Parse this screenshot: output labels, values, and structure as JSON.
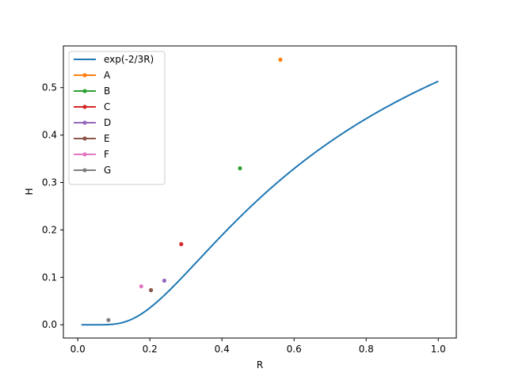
{
  "chart_data": {
    "type": "line",
    "title": "",
    "xlabel": "R",
    "ylabel": "H",
    "xlim": [
      -0.04,
      1.05
    ],
    "ylim": [
      -0.028,
      0.588
    ],
    "xticks": [
      0.0,
      0.2,
      0.4,
      0.6,
      0.8,
      1.0
    ],
    "xtick_labels": [
      "0.0",
      "0.2",
      "0.4",
      "0.6",
      "0.8",
      "1.0"
    ],
    "yticks": [
      0.0,
      0.1,
      0.2,
      0.3,
      0.4,
      0.5
    ],
    "ytick_labels": [
      "0.0",
      "0.1",
      "0.2",
      "0.3",
      "0.4",
      "0.5"
    ],
    "grid": false,
    "legend": "upper left",
    "series": [
      {
        "name": "exp(-2/3R)",
        "kind": "function",
        "x_range": [
          0.01,
          1.0
        ],
        "color": "#1f77b4"
      },
      {
        "name": "A",
        "kind": "point",
        "x": 0.562,
        "y": 0.559,
        "color": "#ff7f0e"
      },
      {
        "name": "B",
        "kind": "point",
        "x": 0.45,
        "y": 0.33,
        "color": "#2ca02c"
      },
      {
        "name": "C",
        "kind": "point",
        "x": 0.287,
        "y": 0.17,
        "color": "#d62728"
      },
      {
        "name": "D",
        "kind": "point",
        "x": 0.24,
        "y": 0.093,
        "color": "#9467bd"
      },
      {
        "name": "E",
        "kind": "point",
        "x": 0.203,
        "y": 0.073,
        "color": "#8c564b"
      },
      {
        "name": "F",
        "kind": "point",
        "x": 0.176,
        "y": 0.081,
        "color": "#e377c2"
      },
      {
        "name": "G",
        "kind": "point",
        "x": 0.085,
        "y": 0.01,
        "color": "#7f7f7f"
      }
    ]
  }
}
